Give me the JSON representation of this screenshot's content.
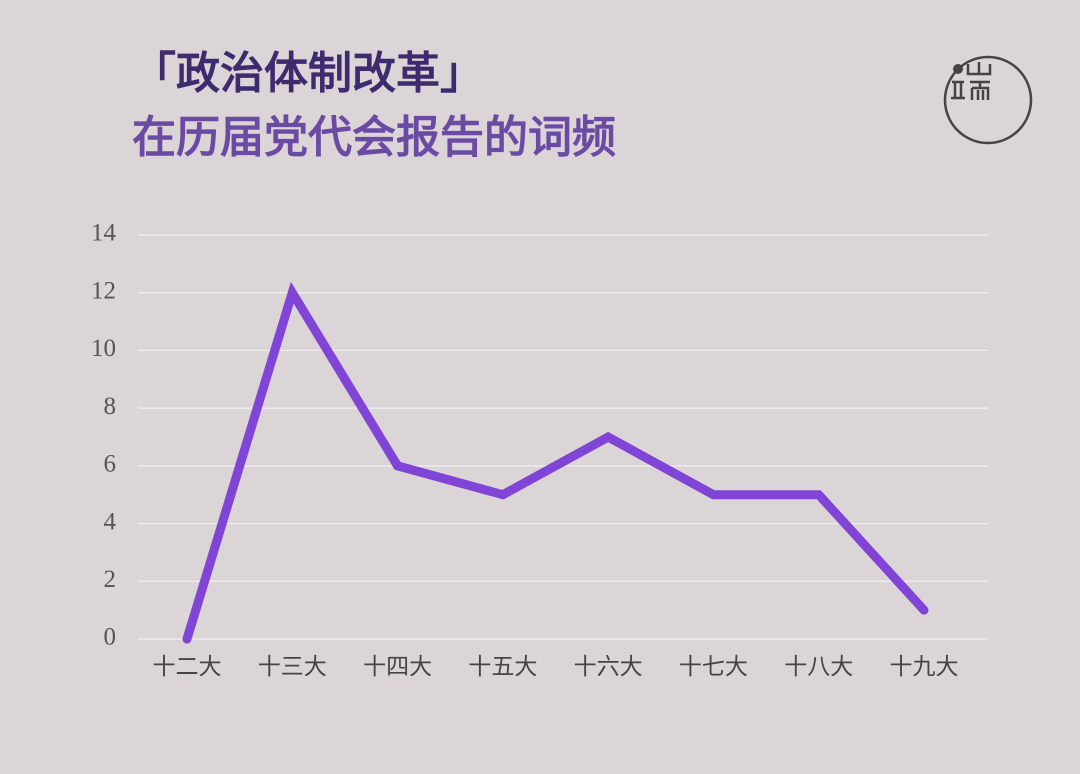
{
  "chart_data": {
    "type": "line",
    "title": "「政治体制改革」",
    "subtitle": "在历届党代会报告的词频",
    "categories": [
      "十二大",
      "十三大",
      "十四大",
      "十五大",
      "十六大",
      "十七大",
      "十八大",
      "十九大"
    ],
    "series": [
      {
        "name": "词频",
        "color": "#8044d6",
        "values": [
          0,
          12,
          6,
          5,
          7,
          5,
          5,
          1
        ]
      }
    ],
    "ylim": [
      0,
      14
    ],
    "yticks": [
      0,
      2,
      4,
      6,
      8,
      10,
      12,
      14
    ],
    "grid": true
  }
}
